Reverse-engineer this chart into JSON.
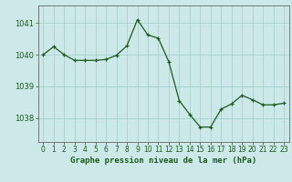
{
  "x": [
    0,
    1,
    2,
    3,
    4,
    5,
    6,
    7,
    8,
    9,
    10,
    11,
    12,
    13,
    14,
    15,
    16,
    17,
    18,
    19,
    20,
    21,
    22,
    23
  ],
  "y": [
    1040.0,
    1040.25,
    1040.0,
    1039.82,
    1039.82,
    1039.82,
    1039.85,
    1039.98,
    1040.28,
    1041.1,
    1040.62,
    1040.52,
    1039.78,
    1038.55,
    1038.12,
    1037.72,
    1037.72,
    1038.28,
    1038.45,
    1038.72,
    1038.58,
    1038.42,
    1038.42,
    1038.47
  ],
  "line_color": "#1a5c1a",
  "marker": "+",
  "bg_color": "#cce8e8",
  "grid_color": "#9ecece",
  "axis_color": "#1a5c1a",
  "xlabel": "Graphe pression niveau de la mer (hPa)",
  "tick_labels": [
    "0",
    "1",
    "2",
    "3",
    "4",
    "5",
    "6",
    "7",
    "8",
    "9",
    "10",
    "11",
    "12",
    "13",
    "14",
    "15",
    "16",
    "17",
    "18",
    "19",
    "20",
    "21",
    "22",
    "23"
  ],
  "yticks": [
    1038,
    1039,
    1040,
    1041
  ],
  "ylim": [
    1037.25,
    1041.55
  ],
  "xlim": [
    -0.5,
    23.5
  ]
}
